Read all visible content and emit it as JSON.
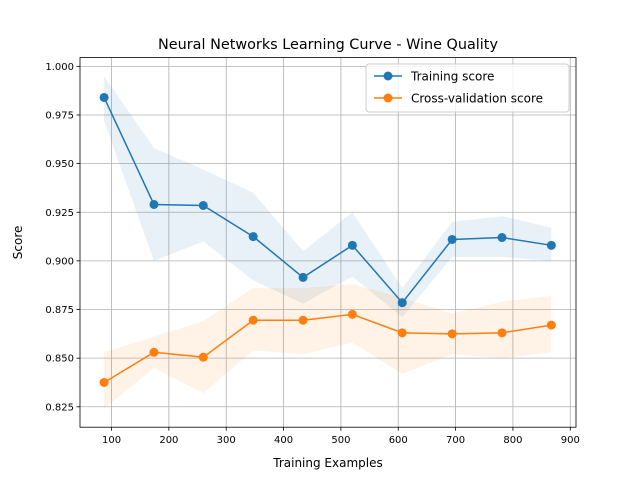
{
  "chart_data": {
    "type": "line",
    "title": "Neural Networks Learning Curve - Wine Quality",
    "xlabel": "Training Examples",
    "ylabel": "Score",
    "xlim": [
      45,
      910
    ],
    "ylim": [
      0.8145,
      1.0045
    ],
    "xticks": [
      100,
      200,
      300,
      400,
      500,
      600,
      700,
      800,
      900
    ],
    "yticks": [
      0.825,
      0.85,
      0.875,
      0.9,
      0.925,
      0.95,
      0.975,
      1.0
    ],
    "xtick_labels": [
      "100",
      "200",
      "300",
      "400",
      "500",
      "600",
      "700",
      "800",
      "900"
    ],
    "ytick_labels": [
      "0.825",
      "0.850",
      "0.875",
      "0.900",
      "0.925",
      "0.950",
      "0.975",
      "1.000"
    ],
    "grid": true,
    "legend_position": "upper right",
    "x": [
      87,
      174,
      260,
      347,
      434,
      520,
      607,
      694,
      781,
      867
    ],
    "series": [
      {
        "name": "Training score",
        "color": "#1f77b4",
        "values": [
          0.984,
          0.929,
          0.9285,
          0.9125,
          0.8915,
          0.908,
          0.8785,
          0.911,
          0.912,
          0.908
        ],
        "band_upper": [
          0.995,
          0.958,
          0.947,
          0.935,
          0.905,
          0.925,
          0.886,
          0.92,
          0.923,
          0.917
        ],
        "band_lower": [
          0.972,
          0.9,
          0.91,
          0.89,
          0.878,
          0.892,
          0.871,
          0.902,
          0.902,
          0.9
        ]
      },
      {
        "name": "Cross-validation score",
        "color": "#ff7f0e",
        "values": [
          0.8375,
          0.853,
          0.8505,
          0.8695,
          0.8695,
          0.8725,
          0.863,
          0.8625,
          0.863,
          0.867
        ],
        "band_upper": [
          0.853,
          0.861,
          0.869,
          0.886,
          0.886,
          0.888,
          0.881,
          0.873,
          0.879,
          0.882
        ],
        "band_lower": [
          0.824,
          0.845,
          0.832,
          0.854,
          0.852,
          0.858,
          0.842,
          0.852,
          0.85,
          0.853
        ]
      }
    ]
  }
}
